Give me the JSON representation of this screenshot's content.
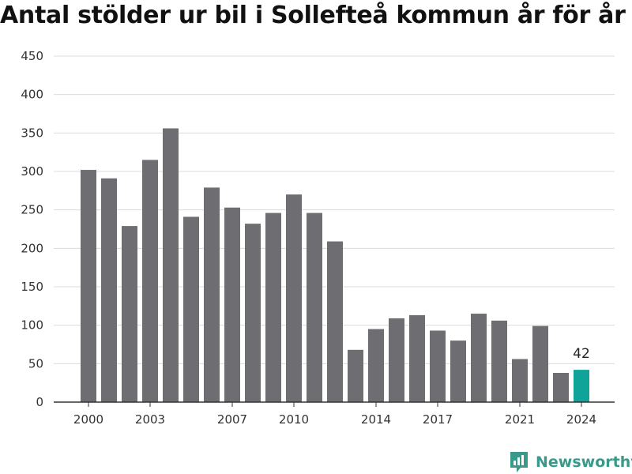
{
  "title": "Antal stölder ur bil i Sollefteå kommun år för år",
  "brand": {
    "name": "Newsworthy",
    "icon": "newsworthy-logo-icon",
    "color": "#3a9a8a"
  },
  "chart_data": {
    "type": "bar",
    "title": "Antal stölder ur bil i Sollefteå kommun år för år",
    "xlabel": "",
    "ylabel": "",
    "ylim": [
      0,
      450
    ],
    "yticks": [
      0,
      50,
      100,
      150,
      200,
      250,
      300,
      350,
      400,
      450
    ],
    "xticks": [
      2000,
      2003,
      2007,
      2010,
      2014,
      2017,
      2021,
      2024
    ],
    "grid": true,
    "categories": [
      2000,
      2001,
      2002,
      2003,
      2004,
      2005,
      2006,
      2007,
      2008,
      2009,
      2010,
      2011,
      2012,
      2013,
      2014,
      2015,
      2016,
      2017,
      2018,
      2019,
      2020,
      2021,
      2022,
      2023,
      2024
    ],
    "values": [
      302,
      291,
      229,
      315,
      356,
      241,
      279,
      253,
      232,
      246,
      270,
      246,
      209,
      68,
      95,
      109,
      113,
      93,
      80,
      115,
      106,
      56,
      99,
      38,
      42
    ],
    "bar_color": "#6d6d72",
    "highlight_color": "#0fa39a",
    "highlight_category": 2024,
    "annotations": [
      {
        "category": 2024,
        "text": "42"
      }
    ]
  }
}
